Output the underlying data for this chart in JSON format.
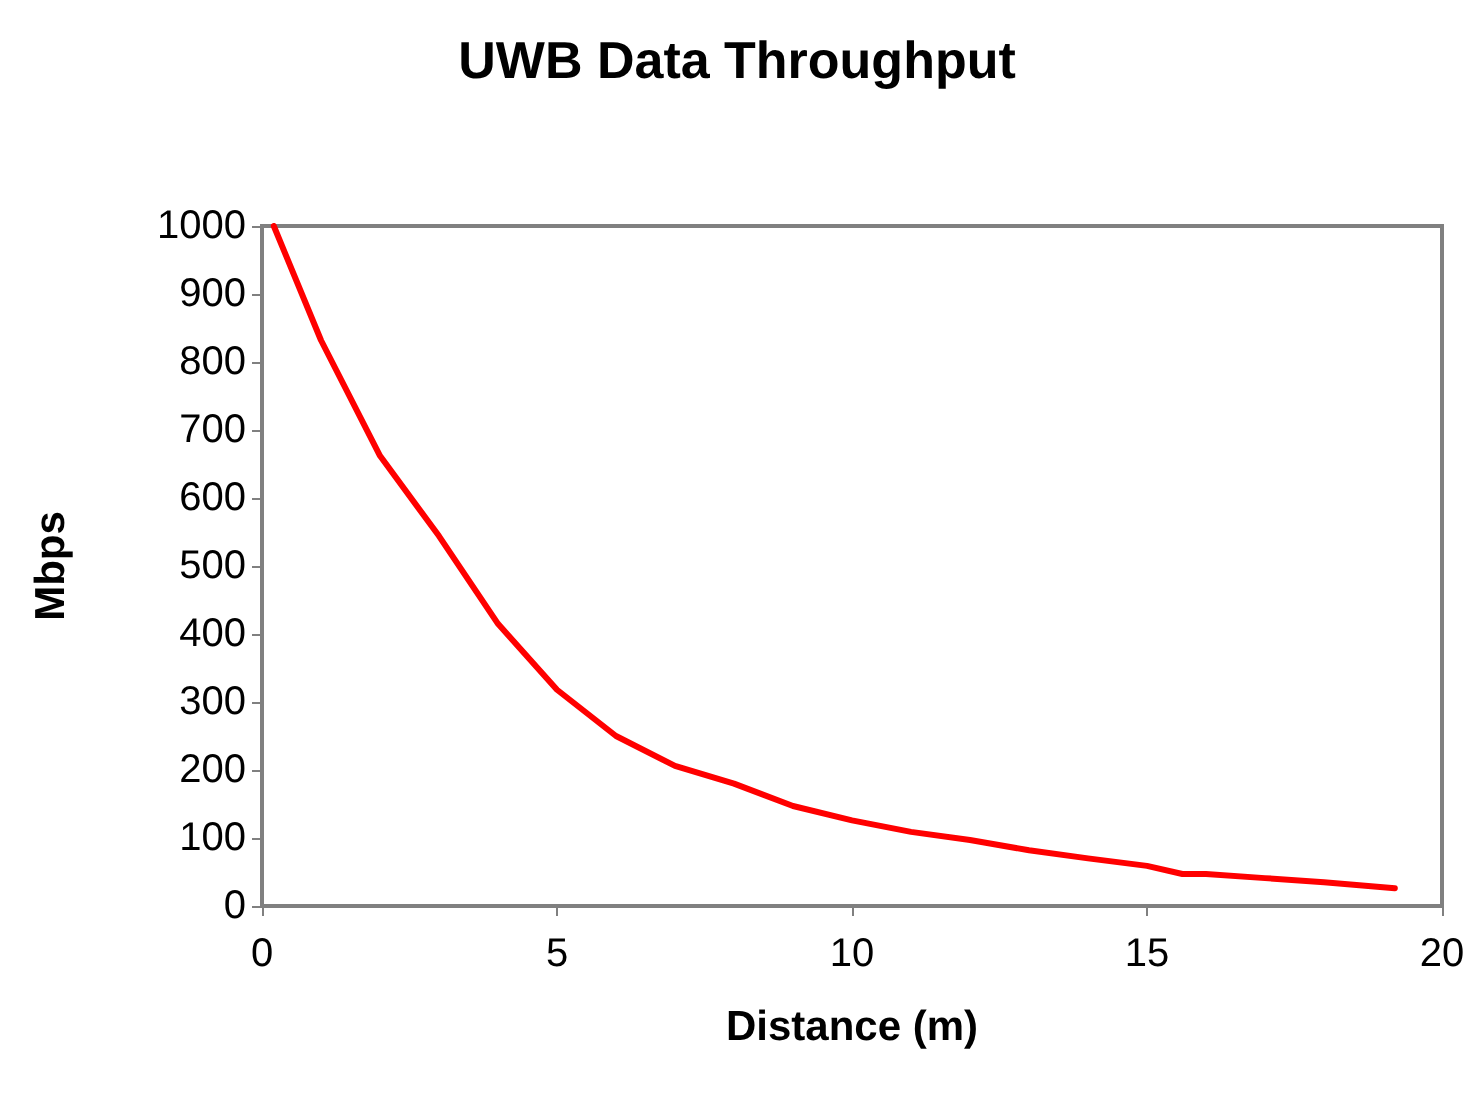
{
  "chart_data": {
    "type": "line",
    "title": "UWB Data Throughput",
    "xlabel": "Distance (m)",
    "ylabel": "Mbps",
    "x": [
      0.2,
      1,
      2,
      3,
      4,
      5,
      6,
      7,
      8,
      9,
      10,
      11,
      12,
      13,
      14,
      15,
      15.6,
      16,
      17,
      18,
      19.2
    ],
    "series": [
      {
        "color": "#ff0000",
        "values": [
          1000,
          832,
          662,
          544,
          415,
          318,
          250,
          206,
          180,
          147,
          126,
          109,
          97,
          82,
          70,
          59,
          47,
          47,
          41,
          35,
          26
        ]
      }
    ],
    "xlim": [
      0,
      20
    ],
    "xticks": [
      0,
      5,
      10,
      15,
      20
    ],
    "ylim": [
      0,
      1000
    ],
    "yticks": [
      0,
      100,
      200,
      300,
      400,
      500,
      600,
      700,
      800,
      900,
      1000
    ],
    "grid": false,
    "marker": "none",
    "line_style": "solid"
  }
}
